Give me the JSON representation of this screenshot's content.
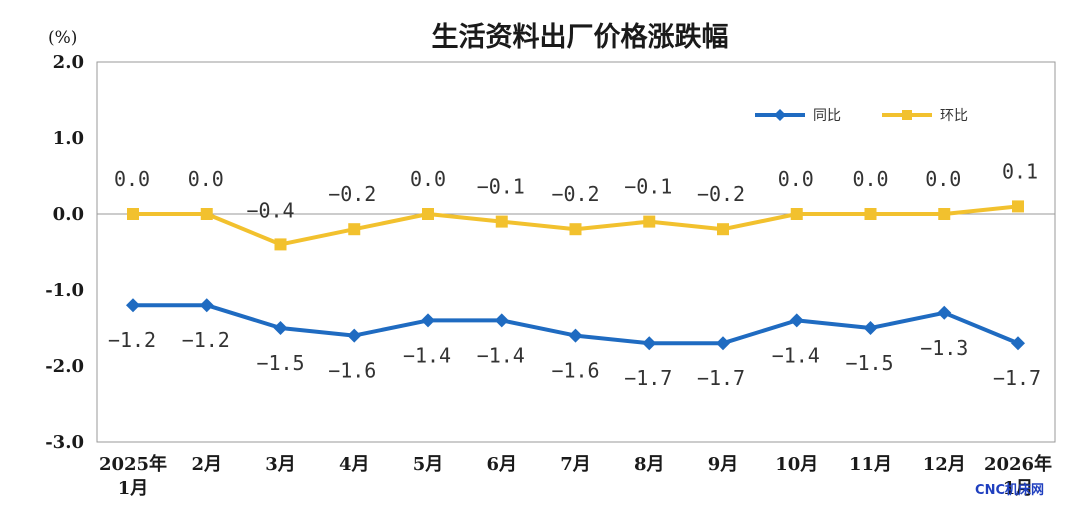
{
  "chart_data": {
    "type": "line",
    "title": "生活资料出厂价格涨跌幅",
    "unit": "(%)",
    "ylim": [
      -3.0,
      2.0
    ],
    "yticks": [
      "2.0",
      "1.0",
      "0.0",
      "-1.0",
      "-2.0",
      "-3.0"
    ],
    "categories": [
      [
        "2025年",
        "1月"
      ],
      [
        "2月"
      ],
      [
        "3月"
      ],
      [
        "4月"
      ],
      [
        "5月"
      ],
      [
        "6月"
      ],
      [
        "7月"
      ],
      [
        "8月"
      ],
      [
        "9月"
      ],
      [
        "10月"
      ],
      [
        "11月"
      ],
      [
        "12月"
      ],
      [
        "2026年",
        "1月"
      ]
    ],
    "series": [
      {
        "name": "同比",
        "color": "#1f6bc1",
        "marker": "diamond",
        "values": [
          -1.2,
          -1.2,
          -1.5,
          -1.6,
          -1.4,
          -1.4,
          -1.6,
          -1.7,
          -1.7,
          -1.4,
          -1.5,
          -1.3,
          -1.7
        ],
        "labels": [
          "−1.2",
          "−1.2",
          "−1.5",
          "−1.6",
          "−1.4",
          "−1.4",
          "−1.6",
          "−1.7",
          "−1.7",
          "−1.4",
          "−1.5",
          "−1.3",
          "−1.7"
        ]
      },
      {
        "name": "环比",
        "color": "#f2c12e",
        "marker": "square",
        "values": [
          0.0,
          0.0,
          -0.4,
          -0.2,
          0.0,
          -0.1,
          -0.2,
          -0.1,
          -0.2,
          0.0,
          0.0,
          0.0,
          0.1
        ],
        "labels": [
          "0.0",
          "0.0",
          "−0.4",
          "−0.2",
          "0.0",
          "−0.1",
          "−0.2",
          "−0.1",
          "−0.2",
          "0.0",
          "0.0",
          "0.0",
          "0.1"
        ]
      }
    ],
    "legend_position": "top-right",
    "grid": false
  },
  "watermark": "CNC机床网"
}
